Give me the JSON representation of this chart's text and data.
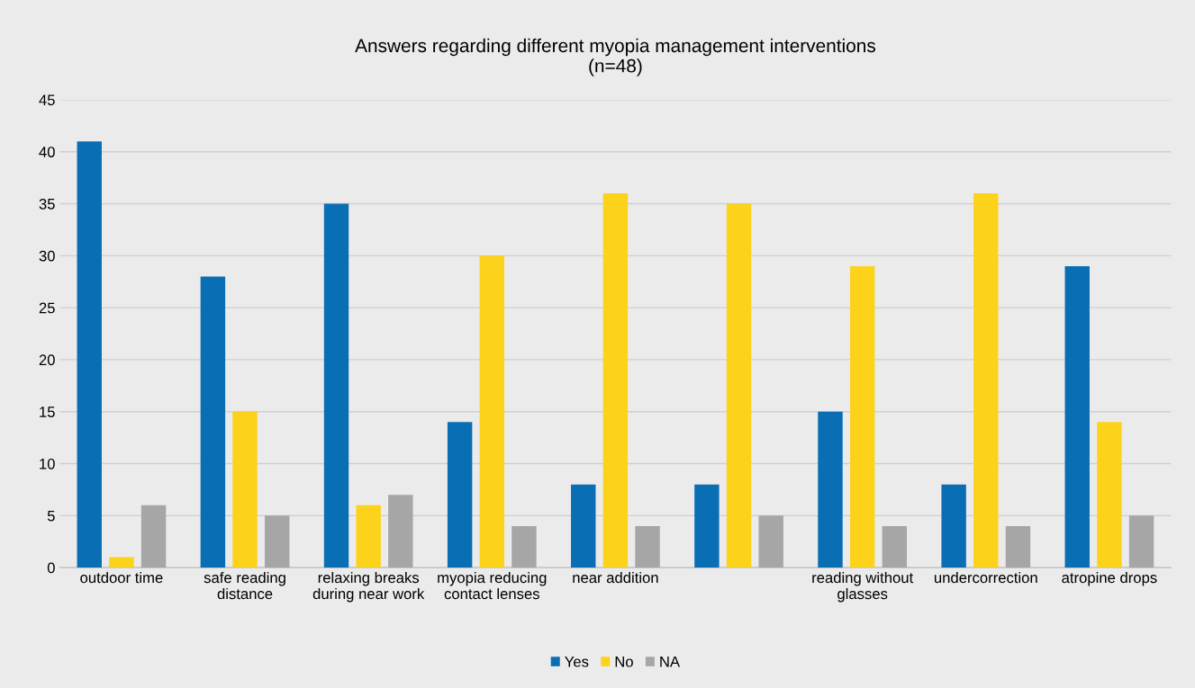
{
  "chart_data": {
    "type": "bar",
    "title": "Answers regarding different myopia management interventions\n(n=48)",
    "categories": [
      "outdoor time",
      "safe reading distance",
      "relaxing breaks during near work",
      "myopia reducing contact lenses",
      "near addition",
      null,
      "reading without glasses",
      "undercorrection",
      "atropine drops"
    ],
    "series": [
      {
        "name": "Yes",
        "color": "#0a6eb4",
        "values": [
          41,
          28,
          35,
          14,
          8,
          8,
          15,
          8,
          29
        ]
      },
      {
        "name": "No",
        "color": "#fdd21a",
        "values": [
          1,
          15,
          6,
          30,
          36,
          35,
          29,
          36,
          14
        ]
      },
      {
        "name": "NA",
        "color": "#a6a6a6",
        "values": [
          6,
          5,
          7,
          4,
          4,
          5,
          4,
          4,
          5
        ]
      }
    ],
    "ylim": [
      0,
      45
    ],
    "yticks": [
      0,
      5,
      10,
      15,
      20,
      25,
      30,
      35,
      40,
      45
    ],
    "grid": "y",
    "legend": "bottom"
  }
}
